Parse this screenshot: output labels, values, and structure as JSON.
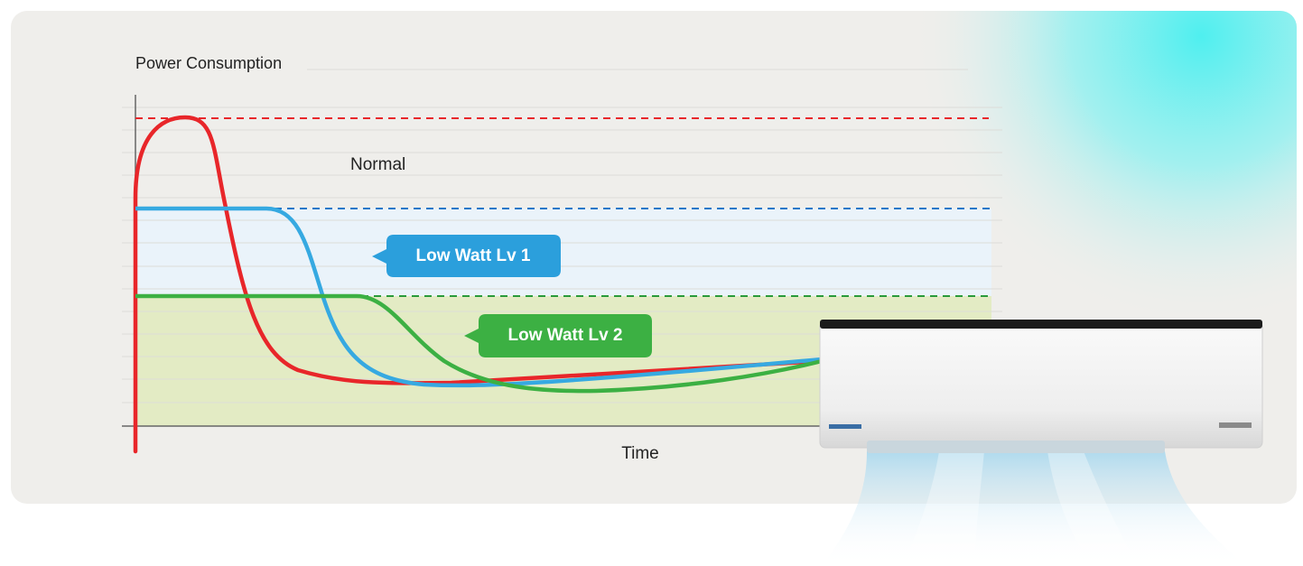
{
  "axis": {
    "y_label": "Power Consumption",
    "x_label": "Time"
  },
  "levels": [
    {
      "label": "Normal"
    },
    {
      "label": "Low Watt Lv 1"
    },
    {
      "label": "Low Watt Lv 2"
    }
  ]
}
